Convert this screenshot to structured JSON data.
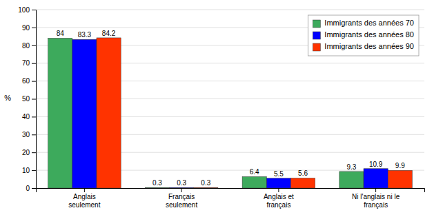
{
  "chart_data": {
    "type": "bar",
    "categories": [
      "Anglais\nseulement",
      "Français\nseulement",
      "Anglais et\nfrançais",
      "Ni l'anglais ni le\nfrançais"
    ],
    "series": [
      {
        "name": "Immigrants des années 70",
        "color": "#3daa5c",
        "values": [
          84.0,
          0.3,
          6.4,
          9.3
        ]
      },
      {
        "name": "Immigrants des années 80",
        "color": "#0000ff",
        "values": [
          83.3,
          0.3,
          5.5,
          10.9
        ]
      },
      {
        "name": "Immigrants des années 90",
        "color": "#ff3300",
        "values": [
          84.2,
          0.3,
          5.6,
          9.9
        ]
      }
    ],
    "y_label": "%",
    "ylim": [
      0,
      100
    ],
    "yticks": [
      0,
      10,
      20,
      30,
      40,
      50,
      60,
      70,
      80,
      90,
      100
    ],
    "grid": true,
    "legend": "upper right",
    "data_labels": true
  }
}
